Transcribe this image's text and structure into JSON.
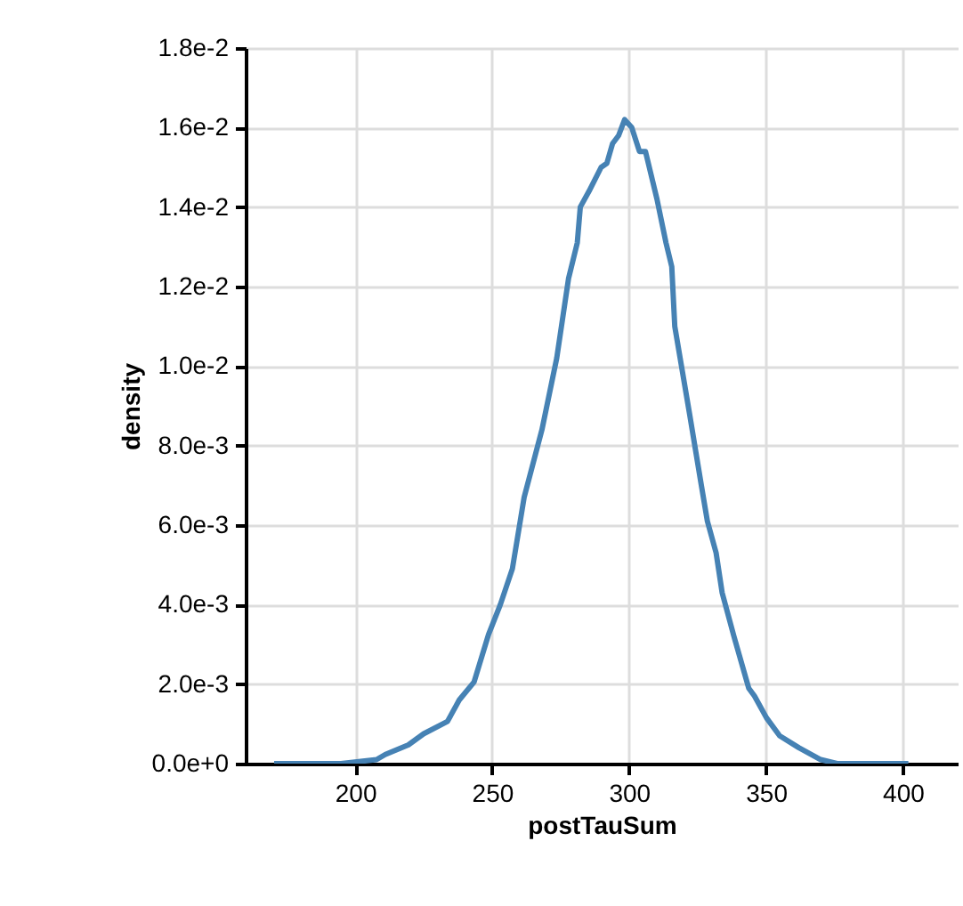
{
  "chart_data": {
    "type": "line",
    "xlabel": "postTauSum",
    "ylabel": "density",
    "x": [
      170.4,
      194.8,
      207.8,
      211,
      219.4,
      225,
      233.7,
      238,
      243.4,
      248.7,
      253,
      257.4,
      261.7,
      268.2,
      273.6,
      277.9,
      281.1,
      282.2,
      285.4,
      289.8,
      291.9,
      294,
      296.2,
      298.4,
      301,
      303.8,
      306,
      310.2,
      313.5,
      315.6,
      316.7,
      322.1,
      326.4,
      328.6,
      331.8,
      334,
      338.3,
      343.7,
      345.8,
      350.2,
      355,
      362,
      370,
      376,
      402
    ],
    "series": [
      {
        "color": "#4682b4",
        "values": [
          0,
          0,
          0.0001,
          0.00023,
          0.00047,
          0.00075,
          0.00106,
          0.0016,
          0.00205,
          0.00325,
          0.004,
          0.0049,
          0.0067,
          0.0084,
          0.0102,
          0.0122,
          0.0131,
          0.014,
          0.0144,
          0.015,
          0.0151,
          0.0156,
          0.0158,
          0.0162,
          0.016,
          0.0154,
          0.0154,
          0.0142,
          0.0131,
          0.0125,
          0.011,
          0.0088,
          0.007,
          0.0061,
          0.0053,
          0.0043,
          0.0032,
          0.0019,
          0.0017,
          0.00115,
          0.0007,
          0.0004,
          0.0001,
          0,
          0
        ]
      }
    ],
    "xlim": [
      160,
      420
    ],
    "xticks": [
      200,
      250,
      300,
      350,
      400
    ],
    "ylim": [
      0,
      0.018
    ],
    "yticks": [
      {
        "value": 0,
        "label": "0.0e+0"
      },
      {
        "value": 0.002,
        "label": "2.0e-3"
      },
      {
        "value": 0.004,
        "label": "4.0e-3"
      },
      {
        "value": 0.006,
        "label": "6.0e-3"
      },
      {
        "value": 0.008,
        "label": "8.0e-3"
      },
      {
        "value": 0.01,
        "label": "1.0e-2"
      },
      {
        "value": 0.012,
        "label": "1.2e-2"
      },
      {
        "value": 0.014,
        "label": "1.4e-2"
      },
      {
        "value": 0.016,
        "label": "1.6e-2"
      },
      {
        "value": 0.018,
        "label": "1.8e-2"
      }
    ],
    "grid": true,
    "line_style": "solid"
  }
}
